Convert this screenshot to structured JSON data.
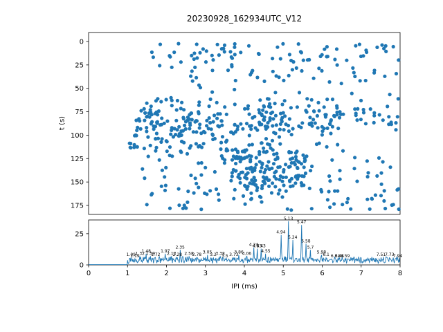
{
  "title": "20230928_162934UTC_V12",
  "colors": {
    "accent": "#1f77b4",
    "axis": "#000000",
    "background": "#ffffff"
  },
  "chart_data": [
    {
      "type": "scatter",
      "title": "20230928_162934UTC_V12",
      "xlabel": "",
      "ylabel": "t (s)",
      "xlim": [
        0,
        8
      ],
      "ylim": [
        -9.6,
        184.6
      ],
      "y_inverted": true,
      "yticks": [
        0,
        25,
        50,
        75,
        100,
        125,
        150,
        175
      ],
      "marker_color": "#1f77b4",
      "render_seed": 42,
      "clusters": [
        {
          "count": 70,
          "x": [
            1.6,
            8.0
          ],
          "t": [
            2,
            22
          ]
        },
        {
          "count": 40,
          "x": [
            1.7,
            8.0
          ],
          "t": [
            24,
            45
          ]
        },
        {
          "count": 8,
          "x": [
            2.0,
            8.0
          ],
          "t": [
            46,
            58
          ]
        },
        {
          "count": 150,
          "x": [
            1.2,
            8.0
          ],
          "t": [
            60,
            95
          ]
        },
        {
          "count": 120,
          "x": [
            1.5,
            6.5
          ],
          "t": [
            70,
            115
          ]
        },
        {
          "count": 60,
          "x": [
            1.05,
            3.0
          ],
          "t": [
            75,
            115
          ]
        },
        {
          "count": 140,
          "x": [
            3.4,
            5.6
          ],
          "t": [
            115,
            155
          ]
        },
        {
          "count": 70,
          "x": [
            1.3,
            8.0
          ],
          "t": [
            115,
            155
          ]
        },
        {
          "count": 70,
          "x": [
            1.3,
            8.0
          ],
          "t": [
            155,
            180
          ]
        }
      ]
    },
    {
      "type": "line",
      "xlabel": "IPI (ms)",
      "ylabel": "",
      "xlim": [
        0,
        8
      ],
      "ylim": [
        0,
        36
      ],
      "xticks": [
        0,
        1,
        2,
        3,
        4,
        5,
        6,
        7,
        8
      ],
      "yticks": [
        0,
        25
      ],
      "line_color": "#1f77b4",
      "render_seed": 13,
      "baseline": {
        "flat_until": 1.0,
        "flat_value": 0.2,
        "noise_min": 1.0,
        "noise_max": 7.0,
        "n": 640
      },
      "peaks": [
        {
          "x": 1.09,
          "h": 6,
          "label": "1.09"
        },
        {
          "x": 1.19,
          "h": 5,
          "label": "1.19"
        },
        {
          "x": 1.32,
          "h": 7,
          "label": "1.32"
        },
        {
          "x": 1.48,
          "h": 9,
          "label": "1.48"
        },
        {
          "x": 1.59,
          "h": 7,
          "label": "1.59"
        },
        {
          "x": 1.72,
          "h": 6,
          "label": "1.72"
        },
        {
          "x": 1.97,
          "h": 9,
          "label": "1.97"
        },
        {
          "x": 2.13,
          "h": 7,
          "label": "2.13"
        },
        {
          "x": 2.28,
          "h": 6,
          "label": "2.28"
        },
        {
          "x": 2.35,
          "h": 12,
          "label": "2.35"
        },
        {
          "x": 2.58,
          "h": 7,
          "label": "2.58"
        },
        {
          "x": 2.78,
          "h": 6,
          "label": "2.78"
        },
        {
          "x": 3.05,
          "h": 8,
          "label": "3.05"
        },
        {
          "x": 3.2,
          "h": 6,
          "label": "3.2"
        },
        {
          "x": 3.38,
          "h": 7,
          "label": "3.38"
        },
        {
          "x": 3.5,
          "h": 5,
          "label": "3.5"
        },
        {
          "x": 3.73,
          "h": 6,
          "label": "3.73"
        },
        {
          "x": 3.86,
          "h": 8,
          "label": "3.86"
        },
        {
          "x": 4.06,
          "h": 7,
          "label": "4.06"
        },
        {
          "x": 4.24,
          "h": 14,
          "label": "4.24"
        },
        {
          "x": 4.33,
          "h": 13,
          "label": "4.33"
        },
        {
          "x": 4.43,
          "h": 13,
          "label": "4.43"
        },
        {
          "x": 4.55,
          "h": 9,
          "label": "4.55"
        },
        {
          "x": 4.94,
          "h": 24,
          "label": "4.94"
        },
        {
          "x": 5.13,
          "h": 35,
          "label": "5.13"
        },
        {
          "x": 5.24,
          "h": 20,
          "label": "5.24"
        },
        {
          "x": 5.47,
          "h": 32,
          "label": "5.47"
        },
        {
          "x": 5.58,
          "h": 17,
          "label": "5.58"
        },
        {
          "x": 5.7,
          "h": 12,
          "label": "5.7"
        },
        {
          "x": 5.98,
          "h": 8,
          "label": "5.98"
        },
        {
          "x": 6.1,
          "h": 6,
          "label": "6.1"
        },
        {
          "x": 6.34,
          "h": 5,
          "label": "6.34"
        },
        {
          "x": 6.44,
          "h": 5,
          "label": "6.44"
        },
        {
          "x": 6.59,
          "h": 5,
          "label": "6.59"
        },
        {
          "x": 7.51,
          "h": 6,
          "label": "7.51"
        },
        {
          "x": 7.73,
          "h": 6,
          "label": "7.73"
        },
        {
          "x": 7.94,
          "h": 5,
          "label": "7.94"
        }
      ]
    }
  ]
}
